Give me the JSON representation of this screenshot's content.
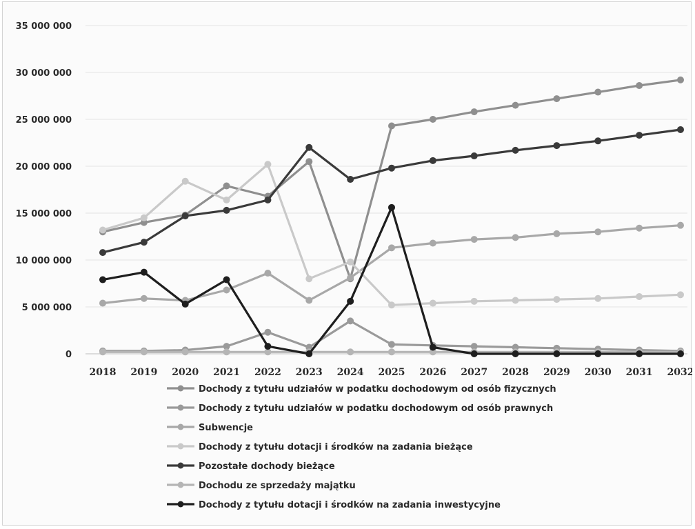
{
  "chart_data": {
    "type": "line",
    "title": "",
    "xlabel": "",
    "ylabel": "",
    "x": [
      "2018",
      "2019",
      "2020",
      "2021",
      "2022",
      "2023",
      "2024",
      "2025",
      "2026",
      "2027",
      "2028",
      "2029",
      "2030",
      "2031",
      "2032"
    ],
    "ylim": [
      0,
      35000000
    ],
    "yticks": [
      0,
      5000000,
      10000000,
      15000000,
      20000000,
      25000000,
      30000000,
      35000000
    ],
    "ytick_labels": [
      "0",
      "5 000 000",
      "10 000 000",
      "15 000 000",
      "20 000 000",
      "25 000 000",
      "30 000 000",
      "35 000 000"
    ],
    "grid": true,
    "legend_position": "bottom",
    "series": [
      {
        "name": "Dochody z tytułu udziałów w podatku dochodowym od osób fizycznych",
        "color": "#8f8f8f",
        "values": [
          13000000,
          14000000,
          14800000,
          17900000,
          16800000,
          20500000,
          8000000,
          24300000,
          25000000,
          25800000,
          26500000,
          27200000,
          27900000,
          28600000,
          29200000
        ]
      },
      {
        "name": "Dochody z tytułu udziałów w podatku dochodowym od osób prawnych",
        "color": "#9a9a9a",
        "values": [
          300000,
          300000,
          400000,
          800000,
          2300000,
          700000,
          3500000,
          1000000,
          900000,
          800000,
          700000,
          600000,
          500000,
          400000,
          300000
        ]
      },
      {
        "name": "Subwencje",
        "color": "#a8a8a8",
        "values": [
          5400000,
          5900000,
          5700000,
          6800000,
          8600000,
          5700000,
          8100000,
          11300000,
          11800000,
          12200000,
          12400000,
          12800000,
          13000000,
          13400000,
          13700000
        ]
      },
      {
        "name": "Dochody z tytułu dotacji i środków na zadania bieżące",
        "color": "#c9c9c9",
        "values": [
          13200000,
          14500000,
          18400000,
          16400000,
          20200000,
          8000000,
          9800000,
          5200000,
          5400000,
          5600000,
          5700000,
          5800000,
          5900000,
          6100000,
          6300000
        ]
      },
      {
        "name": "Pozostałe dochody bieżące",
        "color": "#3a3a3a",
        "values": [
          10800000,
          11900000,
          14700000,
          15300000,
          16400000,
          22000000,
          18600000,
          19800000,
          20600000,
          21100000,
          21700000,
          22200000,
          22700000,
          23300000,
          23900000
        ]
      },
      {
        "name": "Dochodu ze sprzedaży majątku",
        "color": "#b5b5b5",
        "values": [
          200000,
          200000,
          200000,
          200000,
          200000,
          200000,
          200000,
          200000,
          200000,
          200000,
          200000,
          200000,
          200000,
          200000,
          200000
        ]
      },
      {
        "name": "Dochody z tytułu dotacji i środków na zadania inwestycyjne",
        "color": "#1e1e1e",
        "values": [
          7900000,
          8700000,
          5300000,
          7900000,
          800000,
          0,
          5600000,
          15600000,
          700000,
          0,
          0,
          0,
          0,
          0,
          0
        ]
      }
    ]
  }
}
